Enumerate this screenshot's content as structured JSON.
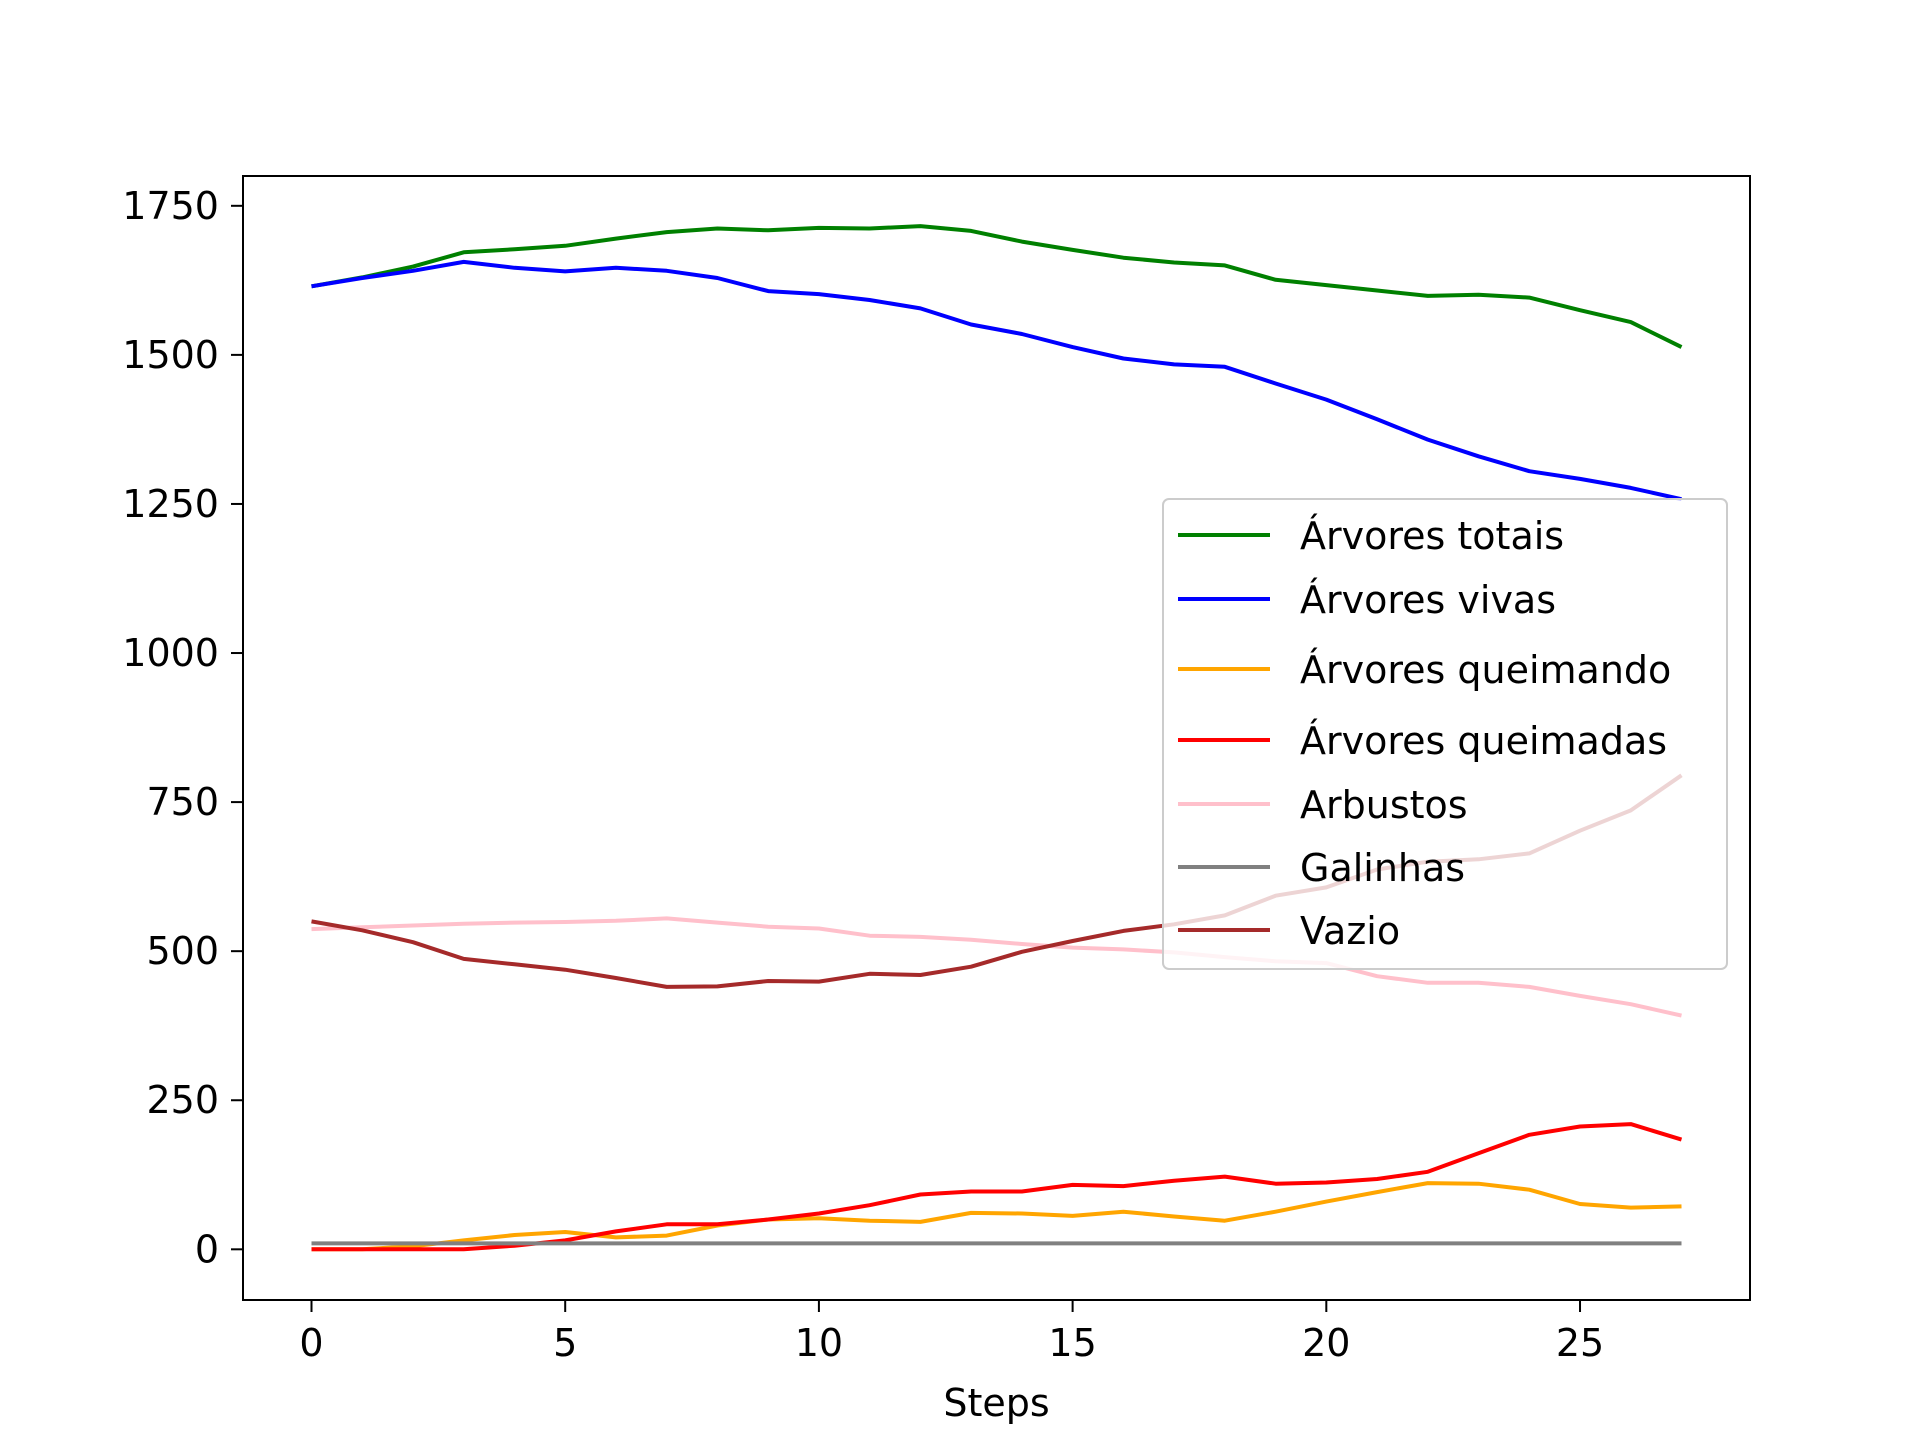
{
  "chart_data": {
    "type": "line",
    "title": "",
    "xlabel": "Steps",
    "ylabel": "",
    "xlim": [
      -1.35,
      28.35
    ],
    "ylim": [
      -85,
      1800
    ],
    "xticks": [
      0,
      5,
      10,
      15,
      20,
      25
    ],
    "xtick_labels": [
      "0",
      "5",
      "10",
      "15",
      "20",
      "25"
    ],
    "yticks": [
      0,
      250,
      500,
      750,
      1000,
      1250,
      1500,
      1750
    ],
    "ytick_labels": [
      "0",
      "250",
      "500",
      "750",
      "1000",
      "1250",
      "1500",
      "1750"
    ],
    "grid": false,
    "legend_position": "center-right",
    "x": [
      0,
      1,
      2,
      3,
      4,
      5,
      6,
      7,
      8,
      9,
      10,
      11,
      12,
      13,
      14,
      15,
      16,
      17,
      18,
      19,
      20,
      21,
      22,
      23,
      24,
      25,
      26,
      27
    ],
    "series": [
      {
        "name": "Árvores totais",
        "color": "#008000",
        "values": [
          1615,
          1630,
          1648,
          1672,
          1677,
          1683,
          1695,
          1706,
          1712,
          1709,
          1713,
          1712,
          1716,
          1708,
          1690,
          1676,
          1663,
          1655,
          1650,
          1626,
          1617,
          1608,
          1599,
          1601,
          1596,
          1575,
          1555,
          1513
        ]
      },
      {
        "name": "Árvores vivas",
        "color": "#0000ff",
        "values": [
          1615,
          1629,
          1641,
          1656,
          1646,
          1640,
          1646,
          1641,
          1629,
          1607,
          1602,
          1592,
          1578,
          1551,
          1535,
          1513,
          1494,
          1484,
          1480,
          1452,
          1425,
          1392,
          1358,
          1330,
          1305,
          1292,
          1277,
          1258
        ]
      },
      {
        "name": "Árvores queimando",
        "color": "#ffa500",
        "values": [
          0,
          0,
          5,
          15,
          24,
          29,
          20,
          23,
          40,
          50,
          52,
          48,
          46,
          61,
          60,
          56,
          63,
          55,
          48,
          63,
          80,
          96,
          111,
          110,
          100,
          76,
          70,
          72
        ]
      },
      {
        "name": "Árvores queimadas",
        "color": "#ff0000",
        "values": [
          0,
          0,
          0,
          0,
          6,
          15,
          30,
          42,
          42,
          50,
          60,
          74,
          92,
          97,
          97,
          108,
          106,
          115,
          122,
          110,
          112,
          118,
          130,
          161,
          192,
          206,
          210,
          184
        ]
      },
      {
        "name": "Arbustos",
        "color": "#ffc0cb",
        "values": [
          537,
          540,
          543,
          546,
          548,
          549,
          551,
          555,
          548,
          541,
          538,
          526,
          524,
          519,
          512,
          506,
          503,
          498,
          490,
          483,
          480,
          458,
          447,
          447,
          440,
          425,
          411,
          392
        ]
      },
      {
        "name": "Galinhas",
        "color": "#808080",
        "values": [
          10,
          10,
          10,
          10,
          10,
          10,
          10,
          10,
          10,
          10,
          10,
          10,
          10,
          10,
          10,
          10,
          10,
          10,
          10,
          10,
          10,
          10,
          10,
          10,
          10,
          10,
          10,
          10
        ]
      },
      {
        "name": "Vazio",
        "color": "#a52a2a",
        "values": [
          550,
          535,
          515,
          487,
          478,
          469,
          455,
          440,
          441,
          450,
          449,
          462,
          460,
          474,
          499,
          517,
          534,
          545,
          560,
          593,
          607,
          637,
          650,
          654,
          664,
          702,
          736,
          795
        ]
      }
    ]
  }
}
